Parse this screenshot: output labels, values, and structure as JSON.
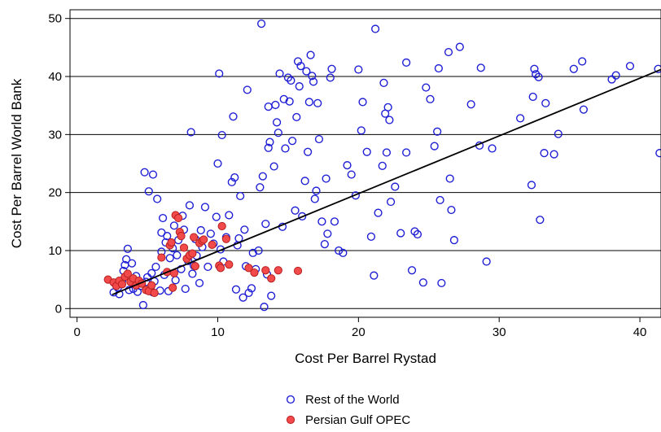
{
  "chart_data": {
    "type": "scatter",
    "title": "",
    "xlabel": "Cost Per Barrel Rystad",
    "ylabel": "Cost Per Barrel World Bank",
    "xlim": [
      -0.5,
      41.5
    ],
    "ylim": [
      -1.5,
      51.5
    ],
    "xticks": [
      0,
      10,
      20,
      30,
      40
    ],
    "yticks": [
      0,
      10,
      20,
      30,
      40,
      50
    ],
    "grid": "horizontal",
    "legend_position": "bottom-center",
    "colors": {
      "rest_stroke": "#1f1fd6",
      "opec_fill": "#f24a4a",
      "opec_stroke": "#b81f1f",
      "fit_line": "#000000",
      "grid": "#000000"
    },
    "series": [
      {
        "name": "Rest of the World",
        "marker": "hollow-circle",
        "points": [
          [
            2.6,
            2.8
          ],
          [
            2.9,
            3.6
          ],
          [
            3.0,
            2.5
          ],
          [
            3.2,
            4.8
          ],
          [
            3.3,
            6.5
          ],
          [
            3.4,
            7.5
          ],
          [
            3.5,
            8.5
          ],
          [
            3.6,
            10.3
          ],
          [
            3.7,
            3.2
          ],
          [
            3.8,
            5.0
          ],
          [
            3.9,
            7.8
          ],
          [
            4.0,
            3.4
          ],
          [
            4.1,
            4.2
          ],
          [
            4.2,
            5.6
          ],
          [
            4.3,
            2.9
          ],
          [
            4.5,
            3.9
          ],
          [
            4.7,
            0.6
          ],
          [
            4.8,
            23.5
          ],
          [
            4.9,
            4.6
          ],
          [
            5.0,
            5.4
          ],
          [
            5.1,
            20.2
          ],
          [
            5.3,
            6.1
          ],
          [
            5.4,
            23.1
          ],
          [
            5.4,
            2.8
          ],
          [
            5.5,
            4.7
          ],
          [
            5.6,
            7.2
          ],
          [
            5.7,
            18.9
          ],
          [
            5.9,
            3.1
          ],
          [
            6.0,
            13.1
          ],
          [
            6.0,
            9.8
          ],
          [
            6.1,
            15.6
          ],
          [
            6.2,
            5.8
          ],
          [
            6.3,
            11.4
          ],
          [
            6.4,
            12.5
          ],
          [
            6.5,
            3.0
          ],
          [
            6.6,
            8.7
          ],
          [
            6.8,
            10.4
          ],
          [
            6.9,
            14.3
          ],
          [
            7.0,
            4.9
          ],
          [
            7.1,
            9.2
          ],
          [
            7.2,
            11.8
          ],
          [
            7.4,
            6.8
          ],
          [
            7.5,
            16.0
          ],
          [
            7.6,
            13.6
          ],
          [
            7.7,
            3.4
          ],
          [
            7.9,
            8.2
          ],
          [
            8.0,
            17.8
          ],
          [
            8.1,
            30.4
          ],
          [
            8.2,
            6.0
          ],
          [
            8.3,
            7.4
          ],
          [
            8.4,
            12.0
          ],
          [
            8.5,
            9.1
          ],
          [
            8.7,
            4.4
          ],
          [
            8.8,
            13.5
          ],
          [
            8.9,
            10.6
          ],
          [
            9.1,
            17.5
          ],
          [
            9.3,
            7.2
          ],
          [
            9.5,
            12.9
          ],
          [
            9.7,
            11.2
          ],
          [
            9.9,
            15.8
          ],
          [
            10.0,
            25.0
          ],
          [
            10.1,
            40.5
          ],
          [
            10.2,
            10.2
          ],
          [
            10.3,
            29.9
          ],
          [
            10.4,
            8.1
          ],
          [
            10.6,
            12.3
          ],
          [
            10.8,
            16.1
          ],
          [
            11.0,
            21.8
          ],
          [
            11.1,
            33.1
          ],
          [
            11.2,
            22.6
          ],
          [
            11.3,
            3.3
          ],
          [
            11.4,
            10.9
          ],
          [
            11.5,
            12.1
          ],
          [
            11.6,
            19.4
          ],
          [
            11.8,
            1.9
          ],
          [
            11.9,
            13.6
          ],
          [
            12.0,
            7.3
          ],
          [
            12.1,
            37.7
          ],
          [
            12.2,
            2.7
          ],
          [
            12.4,
            3.5
          ],
          [
            12.5,
            9.6
          ],
          [
            12.7,
            6.8
          ],
          [
            12.9,
            10.0
          ],
          [
            13.0,
            20.9
          ],
          [
            13.1,
            49.1
          ],
          [
            13.2,
            22.8
          ],
          [
            13.3,
            0.3
          ],
          [
            13.4,
            14.6
          ],
          [
            13.5,
            5.9
          ],
          [
            13.6,
            27.7
          ],
          [
            13.6,
            34.8
          ],
          [
            13.7,
            28.7
          ],
          [
            13.8,
            2.2
          ],
          [
            14.0,
            24.5
          ],
          [
            14.1,
            35.1
          ],
          [
            14.2,
            32.1
          ],
          [
            14.3,
            30.3
          ],
          [
            14.4,
            40.5
          ],
          [
            14.6,
            14.1
          ],
          [
            14.7,
            36.1
          ],
          [
            14.8,
            27.6
          ],
          [
            15.0,
            39.8
          ],
          [
            15.1,
            35.7
          ],
          [
            15.2,
            39.3
          ],
          [
            15.3,
            28.9
          ],
          [
            15.5,
            16.9
          ],
          [
            15.6,
            33.0
          ],
          [
            15.7,
            42.6
          ],
          [
            15.8,
            38.3
          ],
          [
            15.9,
            41.8
          ],
          [
            16.0,
            15.9
          ],
          [
            16.2,
            22.0
          ],
          [
            16.3,
            40.9
          ],
          [
            16.4,
            27.0
          ],
          [
            16.5,
            35.6
          ],
          [
            16.6,
            43.7
          ],
          [
            16.7,
            40.1
          ],
          [
            16.8,
            39.1
          ],
          [
            16.9,
            18.9
          ],
          [
            17.0,
            20.3
          ],
          [
            17.1,
            35.4
          ],
          [
            17.2,
            29.2
          ],
          [
            17.4,
            15.0
          ],
          [
            17.6,
            11.1
          ],
          [
            17.7,
            22.4
          ],
          [
            17.8,
            12.9
          ],
          [
            18.0,
            39.8
          ],
          [
            18.1,
            41.3
          ],
          [
            18.3,
            15.0
          ],
          [
            18.6,
            10.0
          ],
          [
            18.9,
            9.6
          ],
          [
            19.2,
            24.7
          ],
          [
            19.5,
            23.1
          ],
          [
            19.8,
            19.5
          ],
          [
            20.0,
            41.2
          ],
          [
            20.2,
            30.7
          ],
          [
            20.3,
            35.6
          ],
          [
            20.6,
            27.0
          ],
          [
            20.9,
            12.4
          ],
          [
            21.1,
            5.7
          ],
          [
            21.2,
            48.2
          ],
          [
            21.4,
            16.5
          ],
          [
            21.7,
            24.6
          ],
          [
            21.8,
            38.9
          ],
          [
            21.9,
            33.6
          ],
          [
            22.0,
            26.9
          ],
          [
            22.1,
            34.7
          ],
          [
            22.2,
            32.5
          ],
          [
            22.3,
            18.4
          ],
          [
            22.6,
            21.0
          ],
          [
            23.0,
            13.0
          ],
          [
            23.4,
            26.9
          ],
          [
            23.4,
            42.4
          ],
          [
            23.8,
            6.6
          ],
          [
            24.0,
            13.3
          ],
          [
            24.2,
            12.8
          ],
          [
            24.6,
            4.5
          ],
          [
            24.8,
            38.1
          ],
          [
            25.1,
            36.1
          ],
          [
            25.4,
            28.0
          ],
          [
            25.6,
            30.5
          ],
          [
            25.7,
            41.4
          ],
          [
            25.8,
            18.7
          ],
          [
            25.9,
            4.4
          ],
          [
            26.4,
            44.2
          ],
          [
            26.5,
            22.4
          ],
          [
            26.6,
            17.0
          ],
          [
            26.8,
            11.8
          ],
          [
            27.2,
            45.1
          ],
          [
            28.0,
            35.2
          ],
          [
            28.6,
            28.1
          ],
          [
            28.7,
            41.5
          ],
          [
            29.1,
            8.1
          ],
          [
            29.5,
            27.6
          ],
          [
            31.5,
            32.8
          ],
          [
            32.3,
            21.3
          ],
          [
            32.4,
            36.5
          ],
          [
            32.5,
            41.3
          ],
          [
            32.6,
            40.4
          ],
          [
            32.8,
            39.9
          ],
          [
            32.9,
            15.3
          ],
          [
            33.2,
            26.8
          ],
          [
            33.3,
            35.4
          ],
          [
            33.9,
            26.6
          ],
          [
            34.2,
            30.1
          ],
          [
            35.3,
            41.3
          ],
          [
            35.9,
            42.6
          ],
          [
            36.0,
            34.3
          ],
          [
            38.0,
            39.5
          ],
          [
            38.3,
            40.2
          ],
          [
            39.3,
            41.8
          ],
          [
            41.3,
            41.3
          ],
          [
            41.4,
            26.8
          ]
        ]
      },
      {
        "name": "Persian Gulf OPEC",
        "marker": "filled-circle",
        "points": [
          [
            2.2,
            5.0
          ],
          [
            2.6,
            4.5
          ],
          [
            2.8,
            3.9
          ],
          [
            3.0,
            4.8
          ],
          [
            3.2,
            4.2
          ],
          [
            3.4,
            5.5
          ],
          [
            3.6,
            6.0
          ],
          [
            3.8,
            4.6
          ],
          [
            4.0,
            5.2
          ],
          [
            4.2,
            4.0
          ],
          [
            4.4,
            4.8
          ],
          [
            4.6,
            4.3
          ],
          [
            4.9,
            3.2
          ],
          [
            5.1,
            3.0
          ],
          [
            5.3,
            4.0
          ],
          [
            5.5,
            2.7
          ],
          [
            6.0,
            8.8
          ],
          [
            6.4,
            6.3
          ],
          [
            6.6,
            10.9
          ],
          [
            6.7,
            11.4
          ],
          [
            6.8,
            3.6
          ],
          [
            6.9,
            6.1
          ],
          [
            7.0,
            16.1
          ],
          [
            7.2,
            15.6
          ],
          [
            7.3,
            13.2
          ],
          [
            7.4,
            12.5
          ],
          [
            7.6,
            10.5
          ],
          [
            7.8,
            8.6
          ],
          [
            8.0,
            9.2
          ],
          [
            8.2,
            9.5
          ],
          [
            8.3,
            12.3
          ],
          [
            8.4,
            7.3
          ],
          [
            8.7,
            11.3
          ],
          [
            8.9,
            11.7
          ],
          [
            9.0,
            11.9
          ],
          [
            9.6,
            11.0
          ],
          [
            10.1,
            7.4
          ],
          [
            10.2,
            7.0
          ],
          [
            10.3,
            14.2
          ],
          [
            10.6,
            12.0
          ],
          [
            10.8,
            7.6
          ],
          [
            12.2,
            7.0
          ],
          [
            12.6,
            6.2
          ],
          [
            13.4,
            6.6
          ],
          [
            13.8,
            5.2
          ],
          [
            14.3,
            6.6
          ],
          [
            15.7,
            6.5
          ]
        ]
      }
    ],
    "fit_line": {
      "type": "linear",
      "x": [
        2.5,
        41.5
      ],
      "y": [
        2.4,
        41.2
      ]
    }
  }
}
